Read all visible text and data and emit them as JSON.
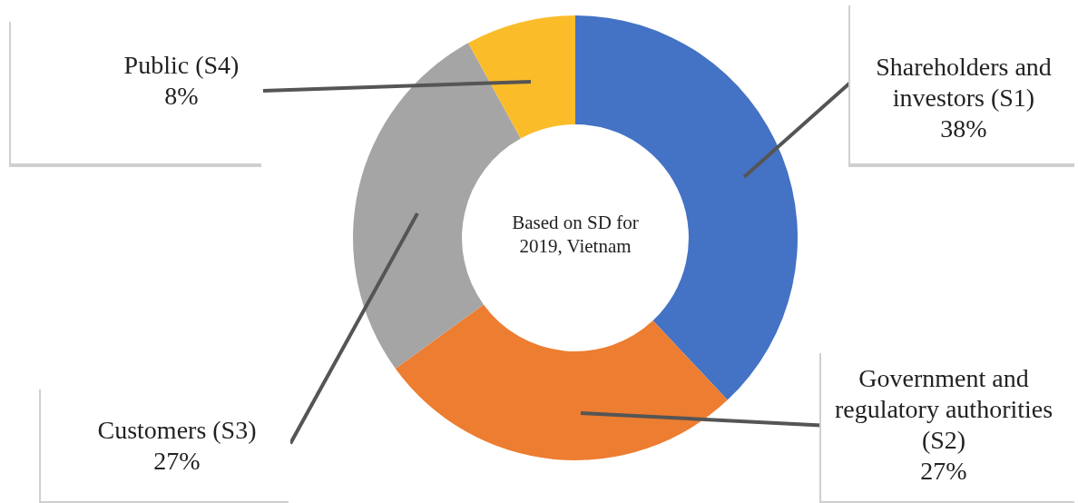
{
  "chart_data": {
    "type": "donut",
    "categories": [
      "Shareholders and investors (S1)",
      "Government and regulatory authorities (S2)",
      "Customers (S3)",
      "Public (S4)"
    ],
    "values": [
      38,
      27,
      27,
      8
    ],
    "colors": [
      "#4472c4",
      "#ed7d31",
      "#a5a5a5",
      "#fbbc2a"
    ],
    "value_labels": [
      "38%",
      "27%",
      "27%",
      "8%"
    ],
    "annotations": [
      "Based on SD for 2019, Vietnam"
    ],
    "legend": false
  }
}
